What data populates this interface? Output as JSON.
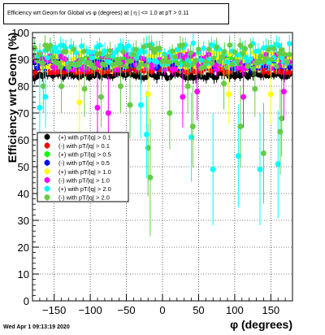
{
  "window": {
    "title": "Efficiency wrt Geom for Global vs φ (degrees) at | η | <= 1.0 at pT > 0.11",
    "footer_date": "Wed Apr  1 09:13:19 2020"
  },
  "chart_data": {
    "type": "scatter",
    "title": "Efficiency wrt Geom for Global vs φ (degrees) at | η | <= 1.0 at pT > 0.11",
    "xlabel": "φ (degrees)",
    "ylabel": "Efficiency wrt Geom (%)",
    "xlim": [
      -180,
      180
    ],
    "ylim": [
      0,
      100
    ],
    "xticks": [
      -150,
      -100,
      -50,
      0,
      50,
      100,
      150
    ],
    "yticks": [
      0,
      10,
      20,
      30,
      40,
      50,
      60,
      70,
      80,
      90,
      100
    ],
    "grid": true,
    "legend_position": "middle-left",
    "series": [
      {
        "name": "(+) with pT/|q| > 0.1",
        "color": "#000000"
      },
      {
        "name": "(-) with pT/|q| > 0.1",
        "color": "#ff0000"
      },
      {
        "name": "(+) with pT/|q| > 0.5",
        "color": "#00ff00"
      },
      {
        "name": "(-) with pT/|q| > 0.5",
        "color": "#0000ff"
      },
      {
        "name": "(+) with pT/|q| > 1.0",
        "color": "#ffff00"
      },
      {
        "name": "(-) with pT/|q| > 1.0",
        "color": "#ff00ff"
      },
      {
        "name": "(+) with pT/|q| > 2.0",
        "color": "#00ffff"
      },
      {
        "name": "(-) with pT/|q| > 2.0",
        "color": "#66cc44"
      }
    ],
    "series_levels": [
      {
        "mean": 84,
        "noise": 1.0,
        "drop": 0.0
      },
      {
        "mean": 86,
        "noise": 1.0,
        "drop": 0.0
      },
      {
        "mean": 89,
        "noise": 1.5,
        "drop": 0.03
      },
      {
        "mean": 88,
        "noise": 1.5,
        "drop": 0.03
      },
      {
        "mean": 90,
        "noise": 3.0,
        "drop": 0.08
      },
      {
        "mean": 89,
        "noise": 3.0,
        "drop": 0.08
      },
      {
        "mean": 92,
        "noise": 4.0,
        "drop": 0.12
      },
      {
        "mean": 91,
        "noise": 4.5,
        "drop": 0.14
      }
    ],
    "outliers": [
      {
        "series": 7,
        "x": -165,
        "y": 80
      },
      {
        "series": 6,
        "x": -170,
        "y": 72
      },
      {
        "series": 6,
        "x": -162,
        "y": 76
      },
      {
        "series": 7,
        "x": -140,
        "y": 80
      },
      {
        "series": 4,
        "x": -115,
        "y": 74
      },
      {
        "series": 7,
        "x": -108,
        "y": 79
      },
      {
        "series": 5,
        "x": -90,
        "y": 72
      },
      {
        "series": 7,
        "x": -85,
        "y": 76
      },
      {
        "series": 5,
        "x": -75,
        "y": 70
      },
      {
        "series": 7,
        "x": -58,
        "y": 80
      },
      {
        "series": 7,
        "x": -45,
        "y": 73
      },
      {
        "series": 6,
        "x": -30,
        "y": 73
      },
      {
        "series": 7,
        "x": -20,
        "y": 57
      },
      {
        "series": 7,
        "x": -17,
        "y": 46
      },
      {
        "series": 6,
        "x": -22,
        "y": 62
      },
      {
        "series": 4,
        "x": -20,
        "y": 77
      },
      {
        "series": 7,
        "x": 10,
        "y": 70
      },
      {
        "series": 5,
        "x": 28,
        "y": 76
      },
      {
        "series": 7,
        "x": 35,
        "y": 80
      },
      {
        "series": 6,
        "x": 40,
        "y": 61
      },
      {
        "series": 7,
        "x": 42,
        "y": 65
      },
      {
        "series": 5,
        "x": 48,
        "y": 78
      },
      {
        "series": 6,
        "x": 70,
        "y": 49
      },
      {
        "series": 7,
        "x": 85,
        "y": 81
      },
      {
        "series": 4,
        "x": 92,
        "y": 77
      },
      {
        "series": 6,
        "x": 105,
        "y": 54
      },
      {
        "series": 7,
        "x": 108,
        "y": 65
      },
      {
        "series": 5,
        "x": 112,
        "y": 76
      },
      {
        "series": 7,
        "x": 128,
        "y": 79
      },
      {
        "series": 6,
        "x": 135,
        "y": 49
      },
      {
        "series": 7,
        "x": 140,
        "y": 55
      },
      {
        "series": 4,
        "x": 150,
        "y": 77
      },
      {
        "series": 6,
        "x": 160,
        "y": 51
      },
      {
        "series": 7,
        "x": 163,
        "y": 63
      },
      {
        "series": 7,
        "x": 165,
        "y": 68
      },
      {
        "series": 5,
        "x": 168,
        "y": 78
      }
    ]
  }
}
